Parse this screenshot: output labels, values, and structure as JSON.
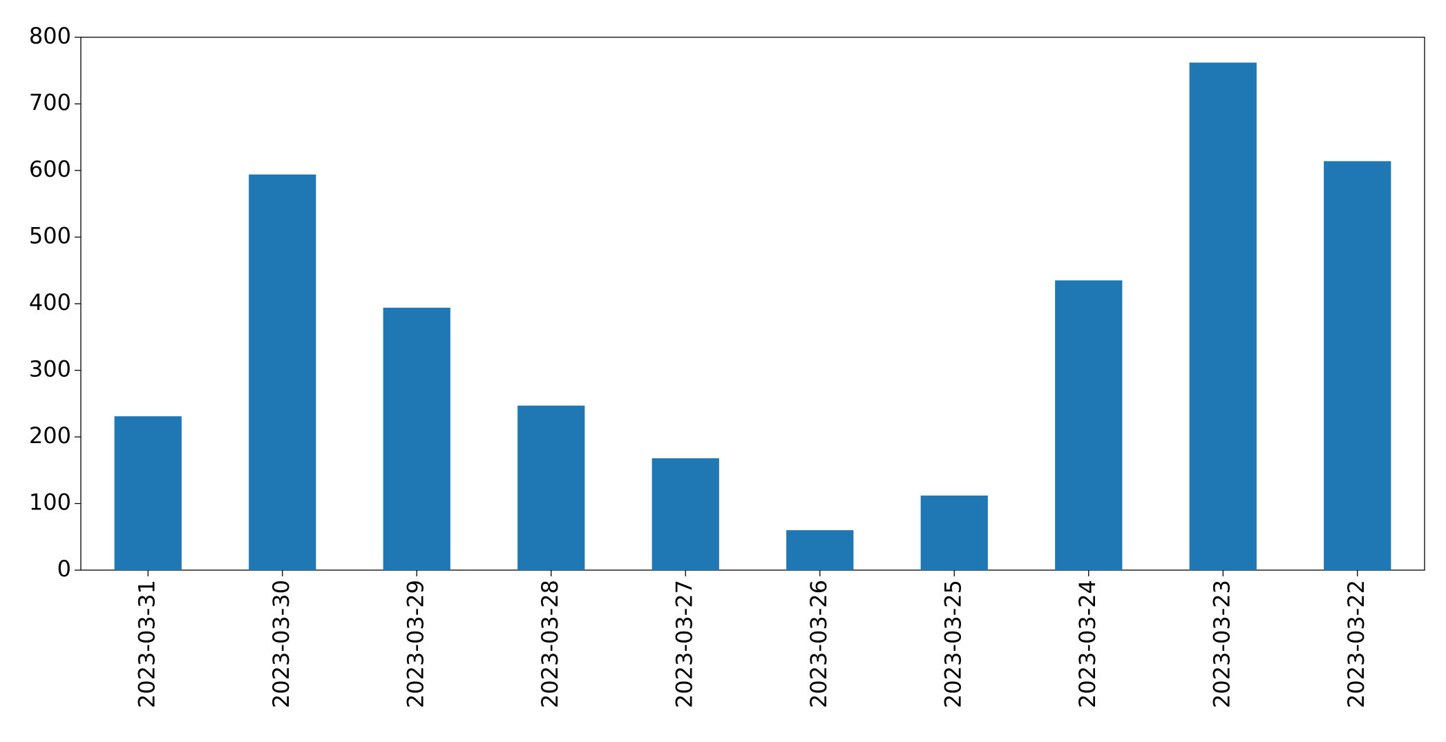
{
  "chart_data": {
    "type": "bar",
    "categories": [
      "2023-03-31",
      "2023-03-30",
      "2023-03-29",
      "2023-03-28",
      "2023-03-27",
      "2023-03-26",
      "2023-03-25",
      "2023-03-24",
      "2023-03-23",
      "2023-03-22"
    ],
    "values": [
      231,
      594,
      394,
      247,
      168,
      60,
      112,
      435,
      762,
      614
    ],
    "color": "#1f77b4",
    "ylim": [
      0,
      800
    ],
    "yticks": [
      0,
      100,
      200,
      300,
      400,
      500,
      600,
      700,
      800
    ],
    "grid": false
  }
}
